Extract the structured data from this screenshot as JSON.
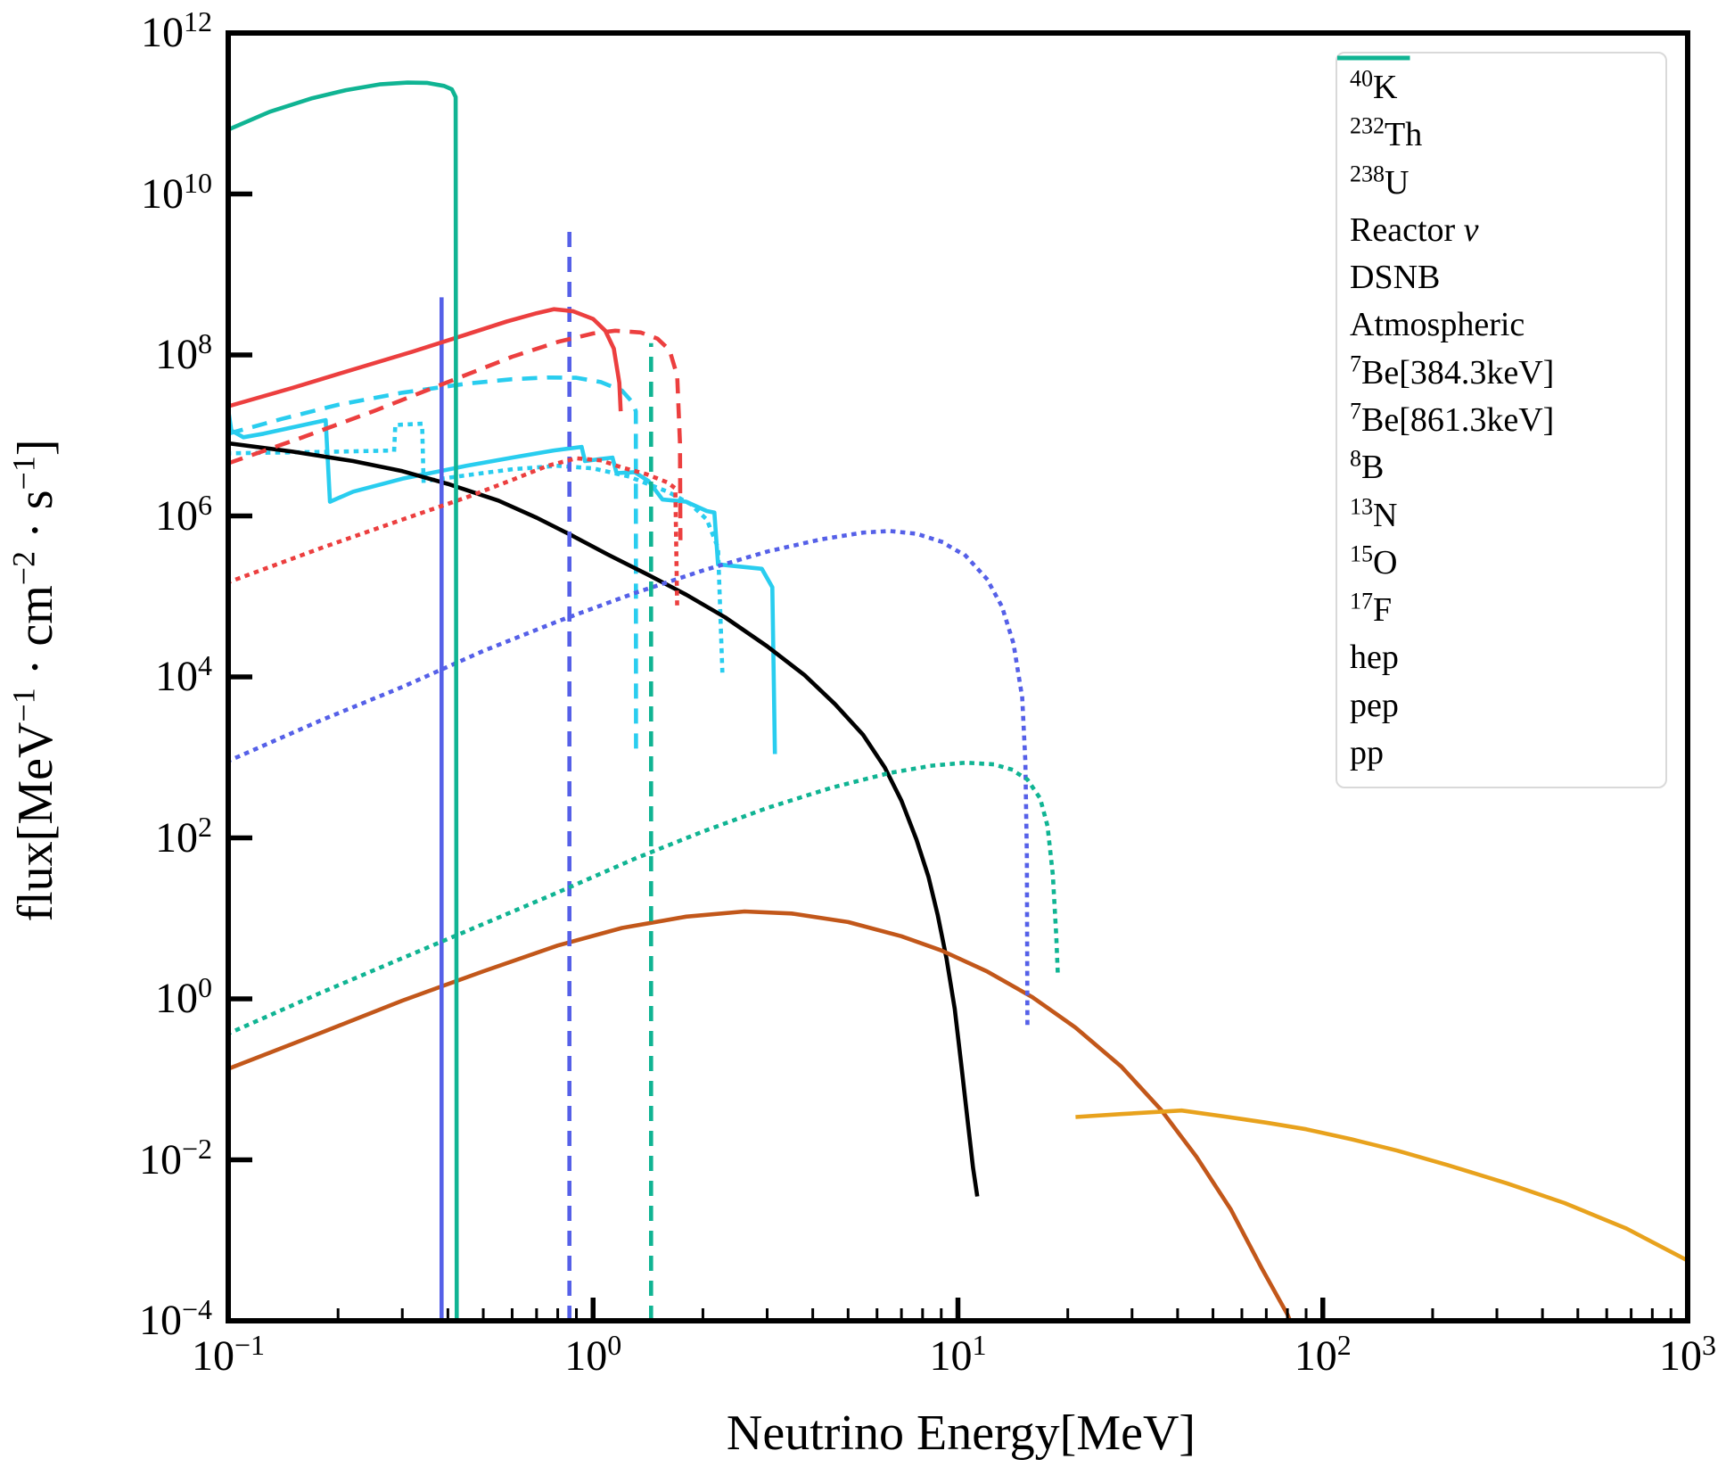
{
  "figure": {
    "background": "#ffffff"
  },
  "palette": {
    "cyan": "#29CDEF",
    "black": "#000000",
    "brown": "#C2571A",
    "orange": "#E8A21D",
    "blue": "#5560E8",
    "red": "#EC3F3F",
    "teal": "#10B493",
    "axis": "#000000",
    "legend_border": "#d9d9d9"
  },
  "chart_data": {
    "type": "line",
    "title": "",
    "xlabel": "Neutrino Energy[MeV]",
    "ylabel": "flux[MeV⁻¹ · cm⁻² · s⁻¹]",
    "ylabel_segments": [
      {
        "v": "flux[MeV"
      },
      {
        "v": "−1",
        "st": "sup"
      },
      {
        "v": " · cm"
      },
      {
        "v": "−2",
        "st": "sup"
      },
      {
        "v": " · s"
      },
      {
        "v": "−1",
        "st": "sup"
      },
      {
        "v": "]"
      }
    ],
    "xscale": "log",
    "yscale": "log",
    "xlim": [
      0.1,
      1000
    ],
    "ylim": [
      0.0001,
      1000000000000.0
    ],
    "x_tick_exponents": [
      -1,
      0,
      1,
      2,
      3
    ],
    "y_tick_exponents": [
      12,
      10,
      8,
      6,
      4,
      2,
      0,
      -2,
      -4
    ],
    "grid": false,
    "legend_position": "upper right",
    "series": [
      {
        "name": "k40",
        "color": "cyan",
        "dash": "dashed",
        "label": [
          {
            "v": "40",
            "st": "sup"
          },
          {
            "v": "K"
          }
        ],
        "points": [
          [
            0.1,
            10500000.0
          ],
          [
            0.14,
            16000000.0
          ],
          [
            0.2,
            24000000.0
          ],
          [
            0.3,
            34000000.0
          ],
          [
            0.45,
            44000000.0
          ],
          [
            0.6,
            50000000.0
          ],
          [
            0.75,
            52500000.0
          ],
          [
            0.9,
            52000000.0
          ],
          [
            1.05,
            46000000.0
          ],
          [
            1.2,
            36000000.0
          ],
          [
            1.28,
            26000000.0
          ],
          [
            1.31,
            20000000.0
          ],
          [
            1.311,
            1100.0
          ]
        ]
      },
      {
        "name": "th232",
        "color": "cyan",
        "dash": "dotted",
        "label": [
          {
            "v": "232",
            "st": "sup"
          },
          {
            "v": "Th"
          }
        ],
        "points": [
          [
            0.1,
            6000000.0
          ],
          [
            0.2,
            6300000.0
          ],
          [
            0.285,
            6500000.0
          ],
          [
            0.287,
            13500000.0
          ],
          [
            0.34,
            14000000.0
          ],
          [
            0.343,
            2700000.0
          ],
          [
            0.45,
            3200000.0
          ],
          [
            0.6,
            3800000.0
          ],
          [
            0.8,
            4200000.0
          ],
          [
            1.0,
            3900000.0
          ],
          [
            1.25,
            3100000.0
          ],
          [
            1.6,
            2000000.0
          ],
          [
            1.85,
            1400000.0
          ],
          [
            2.05,
            900000.0
          ],
          [
            2.2,
            400000.0
          ],
          [
            2.26,
            12000.0
          ]
        ]
      },
      {
        "name": "u238",
        "color": "cyan",
        "dash": "solid",
        "label": [
          {
            "v": "238",
            "st": "sup"
          },
          {
            "v": "U"
          }
        ],
        "points": [
          [
            0.1,
            21000000.0
          ],
          [
            0.102,
            11500000.0
          ],
          [
            0.11,
            9500000.0
          ],
          [
            0.125,
            10500000.0
          ],
          [
            0.185,
            15500000.0
          ],
          [
            0.19,
            1500000.0
          ],
          [
            0.22,
            2000000.0
          ],
          [
            0.3,
            2900000.0
          ],
          [
            0.45,
            4200000.0
          ],
          [
            0.6,
            5300000.0
          ],
          [
            0.78,
            6500000.0
          ],
          [
            0.93,
            7200000.0
          ],
          [
            0.95,
            4800000.0
          ],
          [
            1.05,
            5100000.0
          ],
          [
            1.13,
            5300000.0
          ],
          [
            1.16,
            3400000.0
          ],
          [
            1.3,
            3500000.0
          ],
          [
            1.42,
            2700000.0
          ],
          [
            1.55,
            1600000.0
          ],
          [
            1.8,
            1500000.0
          ],
          [
            2.05,
            1150000.0
          ],
          [
            2.15,
            1100000.0
          ],
          [
            2.2,
            250000.0
          ],
          [
            2.9,
            220000.0
          ],
          [
            3.1,
            130000.0
          ],
          [
            3.15,
            1100.0
          ]
        ]
      },
      {
        "name": "reactor",
        "color": "black",
        "dash": "solid",
        "label": [
          {
            "v": "Reactor "
          },
          {
            "v": "ν",
            "st": "it"
          }
        ],
        "points": [
          [
            0.1,
            8000000.0
          ],
          [
            0.15,
            6300000.0
          ],
          [
            0.22,
            4800000.0
          ],
          [
            0.3,
            3600000.0
          ],
          [
            0.4,
            2500000.0
          ],
          [
            0.55,
            1550000.0
          ],
          [
            0.7,
            950000.0
          ],
          [
            0.87,
            580000.0
          ],
          [
            1.1,
            330000.0
          ],
          [
            1.4,
            190000.0
          ],
          [
            1.8,
            105000.0
          ],
          [
            2.3,
            55000.0
          ],
          [
            3.0,
            24000.0
          ],
          [
            3.8,
            10500.0
          ],
          [
            4.6,
            4600.0
          ],
          [
            5.5,
            1900.0
          ],
          [
            6.3,
            750.0
          ],
          [
            7.0,
            290.0
          ],
          [
            7.7,
            95
          ],
          [
            8.3,
            33
          ],
          [
            8.8,
            11
          ],
          [
            9.3,
            3.2
          ],
          [
            9.8,
            0.75
          ],
          [
            10.2,
            0.16
          ],
          [
            10.6,
            0.034
          ],
          [
            11.0,
            0.008
          ],
          [
            11.3,
            0.0035
          ]
        ]
      },
      {
        "name": "dsnb",
        "color": "brown",
        "dash": "solid",
        "label": [
          {
            "v": "DSNB"
          }
        ],
        "points": [
          [
            0.1,
            0.135
          ],
          [
            0.18,
            0.38
          ],
          [
            0.3,
            0.95
          ],
          [
            0.5,
            2.2
          ],
          [
            0.8,
            4.6
          ],
          [
            1.2,
            7.6
          ],
          [
            1.8,
            10.5
          ],
          [
            2.6,
            12.2
          ],
          [
            3.5,
            11.5
          ],
          [
            5,
            9.0
          ],
          [
            7,
            6.0
          ],
          [
            9,
            4.0
          ],
          [
            12,
            2.2
          ],
          [
            16,
            1.05
          ],
          [
            21,
            0.44
          ],
          [
            28,
            0.145
          ],
          [
            36,
            0.042
          ],
          [
            45,
            0.011
          ],
          [
            56,
            0.0024
          ],
          [
            68,
            0.00045
          ],
          [
            80,
            0.00012
          ],
          [
            83,
            8e-05
          ]
        ]
      },
      {
        "name": "atmospheric",
        "color": "orange",
        "dash": "solid",
        "label": [
          {
            "v": "Atmospheric"
          }
        ],
        "points": [
          [
            21,
            0.034
          ],
          [
            28,
            0.037
          ],
          [
            41,
            0.041
          ],
          [
            55,
            0.034
          ],
          [
            70,
            0.029
          ],
          [
            90,
            0.024
          ],
          [
            120,
            0.018
          ],
          [
            160,
            0.013
          ],
          [
            220,
            0.0086
          ],
          [
            320,
            0.0051
          ],
          [
            460,
            0.0029
          ],
          [
            680,
            0.0014
          ],
          [
            1000,
            0.00056
          ]
        ]
      },
      {
        "name": "be7_384",
        "color": "blue",
        "dash": "solid",
        "label": [
          {
            "v": "7",
            "st": "sup"
          },
          {
            "v": "Be[384.3keV]"
          }
        ],
        "points": [
          [
            0.3843,
            0.0001
          ],
          [
            0.3843,
            520000000.0
          ]
        ]
      },
      {
        "name": "be7_861",
        "color": "blue",
        "dash": "dashed",
        "label": [
          {
            "v": "7",
            "st": "sup"
          },
          {
            "v": "Be[861.3keV]"
          }
        ],
        "points": [
          [
            0.8613,
            0.0001
          ],
          [
            0.8613,
            4400000000.0
          ]
        ]
      },
      {
        "name": "b8",
        "color": "blue",
        "dash": "dotted",
        "label": [
          {
            "v": "8",
            "st": "sup"
          },
          {
            "v": "B"
          }
        ],
        "points": [
          [
            0.1,
            900.0
          ],
          [
            0.18,
            2900.0
          ],
          [
            0.3,
            7500.0
          ],
          [
            0.5,
            21000.0
          ],
          [
            0.8,
            49000.0
          ],
          [
            1.3,
            110000.0
          ],
          [
            2.0,
            210000.0
          ],
          [
            3.0,
            360000.0
          ],
          [
            4.2,
            510000.0
          ],
          [
            5.5,
            620000.0
          ],
          [
            6.5,
            650000.0
          ],
          [
            7.7,
            600000.0
          ],
          [
            9,
            480000.0
          ],
          [
            10.5,
            320000.0
          ],
          [
            12,
            165000.0
          ],
          [
            13.2,
            75000.0
          ],
          [
            14.2,
            26000.0
          ],
          [
            15.0,
            5500.0
          ],
          [
            15.3,
            900.0
          ],
          [
            15.45,
            60
          ],
          [
            15.5,
            0.5
          ]
        ]
      },
      {
        "name": "n13",
        "color": "red",
        "dash": "solid",
        "label": [
          {
            "v": "13",
            "st": "sup"
          },
          {
            "v": "N"
          }
        ],
        "points": [
          [
            0.1,
            23000000.0
          ],
          [
            0.15,
            39000000.0
          ],
          [
            0.22,
            66000000.0
          ],
          [
            0.32,
            110000000.0
          ],
          [
            0.45,
            180000000.0
          ],
          [
            0.58,
            260000000.0
          ],
          [
            0.7,
            330000000.0
          ],
          [
            0.78,
            370000000.0
          ],
          [
            0.88,
            350000000.0
          ],
          [
            1.0,
            280000000.0
          ],
          [
            1.08,
            200000000.0
          ],
          [
            1.14,
            120000000.0
          ],
          [
            1.18,
            45000000.0
          ],
          [
            1.19,
            20000000.0
          ]
        ]
      },
      {
        "name": "o15",
        "color": "red",
        "dash": "dashed",
        "label": [
          {
            "v": "15",
            "st": "sup"
          },
          {
            "v": "O"
          }
        ],
        "points": [
          [
            0.1,
            4500000.0
          ],
          [
            0.16,
            9500000.0
          ],
          [
            0.25,
            20000000.0
          ],
          [
            0.4,
            46000000.0
          ],
          [
            0.6,
            95000000.0
          ],
          [
            0.8,
            145000000.0
          ],
          [
            1.0,
            185000000.0
          ],
          [
            1.15,
            200000000.0
          ],
          [
            1.35,
            190000000.0
          ],
          [
            1.5,
            160000000.0
          ],
          [
            1.62,
            115000000.0
          ],
          [
            1.7,
            55000000.0
          ],
          [
            1.73,
            8000000.0
          ],
          [
            1.735,
            500000.0
          ]
        ]
      },
      {
        "name": "f17",
        "color": "red",
        "dash": "dotted",
        "label": [
          {
            "v": "17",
            "st": "sup"
          },
          {
            "v": "F"
          }
        ],
        "points": [
          [
            0.1,
            150000.0
          ],
          [
            0.18,
            400000.0
          ],
          [
            0.3,
            900000.0
          ],
          [
            0.45,
            1700000.0
          ],
          [
            0.6,
            2800000.0
          ],
          [
            0.75,
            4200000.0
          ],
          [
            0.9,
            5200000.0
          ],
          [
            1.05,
            4900000.0
          ],
          [
            1.2,
            4000000.0
          ],
          [
            1.4,
            3300000.0
          ],
          [
            1.6,
            2600000.0
          ],
          [
            1.68,
            2200000.0
          ],
          [
            1.7,
            70000.0
          ]
        ]
      },
      {
        "name": "hep",
        "color": "teal",
        "dash": "dotted",
        "label": [
          {
            "v": "hep"
          }
        ],
        "points": [
          [
            0.1,
            0.37
          ],
          [
            0.18,
            1.2
          ],
          [
            0.3,
            3.2
          ],
          [
            0.5,
            8.5
          ],
          [
            0.8,
            21
          ],
          [
            1.3,
            55
          ],
          [
            2.0,
            120
          ],
          [
            3.0,
            235
          ],
          [
            4.5,
            420
          ],
          [
            6.5,
            640
          ],
          [
            8.5,
            790
          ],
          [
            10.5,
            860
          ],
          [
            12.5,
            820
          ],
          [
            14,
            710
          ],
          [
            15.5,
            530
          ],
          [
            16.8,
            310
          ],
          [
            17.6,
            140
          ],
          [
            18.2,
            35
          ],
          [
            18.6,
            6
          ],
          [
            18.8,
            1.8
          ]
        ]
      },
      {
        "name": "pep",
        "color": "teal",
        "dash": "dashed",
        "label": [
          {
            "v": "pep"
          }
        ],
        "points": [
          [
            1.442,
            0.0001
          ],
          [
            1.442,
            140000000.0
          ]
        ]
      },
      {
        "name": "pp",
        "color": "teal",
        "dash": "solid",
        "label": [
          {
            "v": "pp"
          }
        ],
        "points": [
          [
            0.1,
            63000000000.0
          ],
          [
            0.13,
            105000000000.0
          ],
          [
            0.17,
            155000000000.0
          ],
          [
            0.21,
            195000000000.0
          ],
          [
            0.26,
            230000000000.0
          ],
          [
            0.31,
            242000000000.0
          ],
          [
            0.35,
            240000000000.0
          ],
          [
            0.39,
            220000000000.0
          ],
          [
            0.41,
            200000000000.0
          ],
          [
            0.42,
            160000000000.0
          ],
          [
            0.423,
            0.0001
          ]
        ]
      }
    ]
  }
}
